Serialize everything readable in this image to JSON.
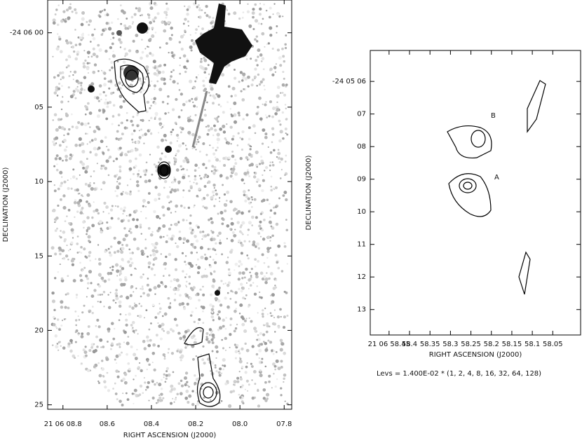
{
  "chart_data": [
    {
      "type": "image",
      "x_label": "RIGHT ASCENSION (J2000)",
      "y_label": "DECLINATION (J2000)",
      "xlim": [
        8.869,
        7.766
      ],
      "ylim": [
        25.3,
        -2.2
      ],
      "xticks": [
        {
          "value": 8.8,
          "label": "21 06 08.8"
        },
        {
          "value": 8.6,
          "label": "08.6"
        },
        {
          "value": 8.4,
          "label": "08.4"
        },
        {
          "value": 8.2,
          "label": "08.2"
        },
        {
          "value": 8.0,
          "label": "08.0"
        },
        {
          "value": 7.8,
          "label": "07.8"
        }
      ],
      "yticks": [
        {
          "value": 0,
          "label": "-24 06 00"
        },
        {
          "value": 5,
          "label": "05"
        },
        {
          "value": 10,
          "label": "10"
        },
        {
          "value": 15,
          "label": "15"
        },
        {
          "value": 20,
          "label": "20"
        },
        {
          "value": 25,
          "label": "25"
        }
      ]
    },
    {
      "type": "contour",
      "x_label": "RIGHT ASCENSION (J2000)",
      "y_label": "DECLINATION (J2000)",
      "xlim": [
        58.496,
        57.982
      ],
      "ylim": [
        13.78,
        5.05
      ],
      "xticks": [
        {
          "value": 58.45,
          "label": "21 06 58.45"
        },
        {
          "value": 58.4,
          "label": "58.4"
        },
        {
          "value": 58.35,
          "label": "58.35"
        },
        {
          "value": 58.3,
          "label": "58.3"
        },
        {
          "value": 58.25,
          "label": "58.25"
        },
        {
          "value": 58.2,
          "label": "58.2"
        },
        {
          "value": 58.15,
          "label": "58.15"
        },
        {
          "value": 58.1,
          "label": "58.1"
        },
        {
          "value": 58.05,
          "label": "58.05"
        }
      ],
      "yticks": [
        {
          "value": 6,
          "label": "-24 05 06"
        },
        {
          "value": 7,
          "label": "07"
        },
        {
          "value": 8,
          "label": "08"
        },
        {
          "value": 9,
          "label": "09"
        },
        {
          "value": 10,
          "label": "10"
        },
        {
          "value": 11,
          "label": "11"
        },
        {
          "value": 12,
          "label": "12"
        },
        {
          "value": 13,
          "label": "13"
        }
      ],
      "annotations": [
        "B",
        "A"
      ],
      "levels_note": "Levs = 1.400E-02 * (1, 2, 4, 8, 16, 32, 64, 128)"
    }
  ]
}
